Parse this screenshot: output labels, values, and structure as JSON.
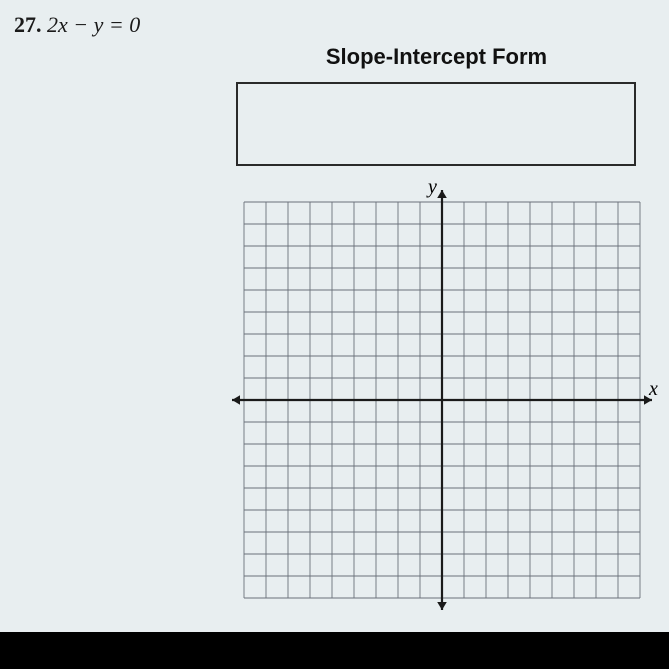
{
  "problem": {
    "number": "27.",
    "equation": "2x − y = 0"
  },
  "section_title": "Slope-Intercept Form",
  "graph": {
    "type": "coordinate-grid",
    "x_label": "x",
    "y_label": "y",
    "grid": {
      "xlim": [
        -9,
        9
      ],
      "ylim": [
        -9,
        9
      ],
      "cell_size": 22,
      "cells_per_half": 9,
      "grid_color": "#6a707a",
      "axis_color": "#1a1a1a",
      "background_color": "#e8eef0",
      "axis_stroke": 2.2,
      "grid_stroke": 0.9,
      "arrow_size": 8
    }
  },
  "answer_box": {
    "border_color": "#2a2a2a",
    "background_color": "#e8eef0"
  },
  "page_background": "#e8eef0"
}
